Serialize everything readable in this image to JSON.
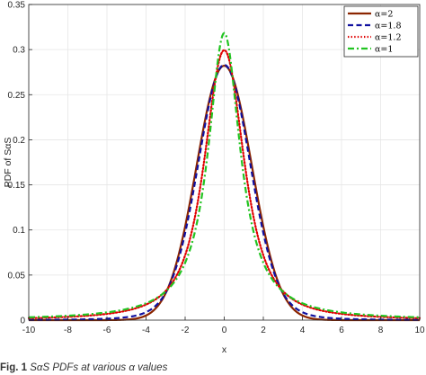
{
  "chart_data": {
    "type": "line",
    "title": "",
    "xlabel": "x",
    "ylabel": "PDF of SαS",
    "xlim": [
      -10,
      10
    ],
    "ylim": [
      0,
      0.35
    ],
    "xticks": [
      "-10",
      "-8",
      "-6",
      "-4",
      "-2",
      "0",
      "2",
      "4",
      "6",
      "8",
      "10"
    ],
    "yticks": [
      "0",
      "0.05",
      "0.1",
      "0.15",
      "0.2",
      "0.25",
      "0.3",
      "0.35"
    ],
    "grid": true,
    "legend_position": "top-right",
    "series": [
      {
        "name": "α=2",
        "color": "#8B2500",
        "dash": "solid",
        "alpha": 2.0,
        "x": [
          -10,
          -8,
          -6,
          -4,
          -3,
          -2,
          -1,
          0,
          1,
          2,
          3,
          4,
          6,
          8,
          10
        ],
        "y": [
          0,
          0,
          0.0003,
          0.0052,
          0.0295,
          0.1036,
          0.2197,
          0.2821,
          0.2197,
          0.1036,
          0.0295,
          0.0052,
          0.0003,
          0,
          0
        ]
      },
      {
        "name": "α=1.8",
        "color": "#1010A0",
        "dash": "dashed",
        "alpha": 1.8,
        "x": [
          -10,
          -8,
          -6,
          -4,
          -3,
          -2,
          -1,
          0,
          1,
          2,
          3,
          4,
          6,
          8,
          10
        ],
        "y": [
          0.0012,
          0.002,
          0.004,
          0.012,
          0.034,
          0.105,
          0.222,
          0.288,
          0.222,
          0.105,
          0.034,
          0.012,
          0.004,
          0.002,
          0.0012
        ]
      },
      {
        "name": "α=1.2",
        "color": "#E00000",
        "dash": "dotted",
        "alpha": 1.2,
        "x": [
          -10,
          -8,
          -6,
          -4,
          -3,
          -2,
          -1,
          0,
          1,
          2,
          3,
          4,
          6,
          8,
          10
        ],
        "y": [
          0.0025,
          0.004,
          0.0075,
          0.018,
          0.034,
          0.093,
          0.213,
          0.298,
          0.213,
          0.093,
          0.034,
          0.018,
          0.0075,
          0.004,
          0.0025
        ]
      },
      {
        "name": "α=1",
        "color": "#22C422",
        "dash": "dashdot",
        "alpha": 1.0,
        "x": [
          -10,
          -8,
          -6,
          -4,
          -3,
          -2,
          -1,
          0,
          1,
          2,
          3,
          4,
          6,
          8,
          10
        ],
        "y": [
          0.0032,
          0.0048,
          0.0086,
          0.0187,
          0.0318,
          0.0637,
          0.1592,
          0.3183,
          0.1592,
          0.0637,
          0.0318,
          0.0187,
          0.0086,
          0.0048,
          0.0032
        ]
      }
    ]
  },
  "caption": {
    "label": "Fig. 1",
    "text": "SαS PDFs at various α values"
  }
}
